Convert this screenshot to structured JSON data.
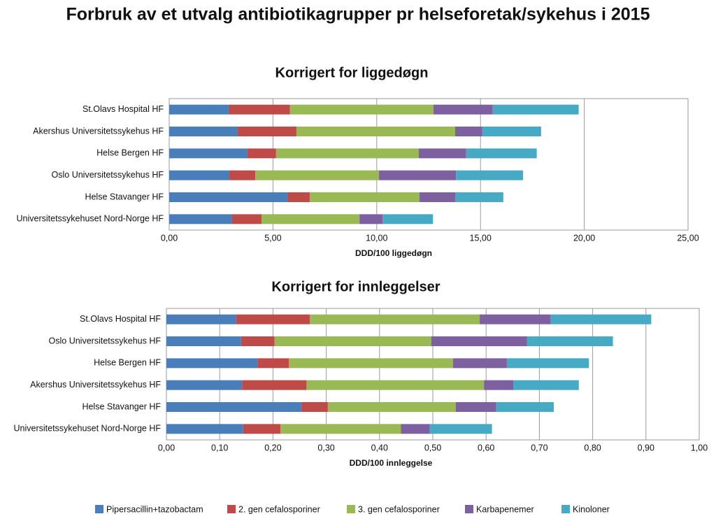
{
  "title": "Forbruk av et utvalg antibiotikagrupper pr helseforetak/sykehus i 2015",
  "chart_data": [
    {
      "type": "bar",
      "orientation": "horizontal",
      "stacked": true,
      "title": "Korrigert for liggedøgn",
      "xlabel": "DDD/100 liggedøgn",
      "categories": [
        "St.Olavs Hospital HF",
        "Akershus Universitetssykehus HF",
        "Helse Bergen HF",
        "Oslo Universitetssykehus HF",
        "Helse Stavanger HF",
        "Universitetssykehuset Nord-Norge HF"
      ],
      "series": [
        {
          "name": "Pipersacillin+tazobactam",
          "color": "#4a7ebb",
          "values": [
            2.86,
            3.3,
            3.77,
            2.9,
            5.69,
            3.03
          ]
        },
        {
          "name": "2. gen cefalosporiner",
          "color": "#be4b48",
          "values": [
            2.96,
            2.83,
            1.38,
            1.25,
            1.08,
            1.42
          ]
        },
        {
          "name": "3. gen cefalosporiner",
          "color": "#98b954",
          "values": [
            6.91,
            7.65,
            6.87,
            5.96,
            5.29,
            4.72
          ]
        },
        {
          "name": "Karbapenemer",
          "color": "#7d60a0",
          "values": [
            2.86,
            1.31,
            2.29,
            3.71,
            1.72,
            1.11
          ]
        },
        {
          "name": "Kinoloner",
          "color": "#46aac5",
          "values": [
            4.14,
            2.83,
            3.4,
            3.23,
            2.32,
            2.43
          ]
        }
      ],
      "xlim": [
        0,
        25
      ],
      "xticks": [
        {
          "value": 0,
          "label": "0,00"
        },
        {
          "value": 5,
          "label": "5,00"
        },
        {
          "value": 10,
          "label": "10,00"
        },
        {
          "value": 15,
          "label": "15,00"
        },
        {
          "value": 20,
          "label": "20,00"
        },
        {
          "value": 25,
          "label": "25,00"
        }
      ],
      "grid": true
    },
    {
      "type": "bar",
      "orientation": "horizontal",
      "stacked": true,
      "title": "Korrigert for innleggelser",
      "xlabel": "DDD/100 innleggelse",
      "categories": [
        "St.Olavs Hospital HF",
        "Oslo Universitetssykehus HF",
        "Helse Bergen HF",
        "Akershus Universitetssykehus HF",
        "Helse Stavanger HF",
        "Universitetssykehuset Nord-Norge HF"
      ],
      "series": [
        {
          "values": [
            0.131,
            0.14,
            0.171,
            0.142,
            0.253,
            0.144
          ]
        },
        {
          "values": [
            0.138,
            0.063,
            0.059,
            0.121,
            0.05,
            0.07
          ]
        },
        {
          "values": [
            0.319,
            0.294,
            0.308,
            0.333,
            0.24,
            0.226
          ]
        },
        {
          "values": [
            0.133,
            0.18,
            0.101,
            0.055,
            0.076,
            0.054
          ]
        },
        {
          "values": [
            0.189,
            0.161,
            0.154,
            0.123,
            0.108,
            0.117
          ]
        }
      ],
      "xlim": [
        0,
        1
      ],
      "xticks": [
        {
          "value": 0,
          "label": "0,00"
        },
        {
          "value": 0.1,
          "label": "0,10"
        },
        {
          "value": 0.2,
          "label": "0,20"
        },
        {
          "value": 0.3,
          "label": "0,30"
        },
        {
          "value": 0.4,
          "label": "0,40"
        },
        {
          "value": 0.5,
          "label": "0,50"
        },
        {
          "value": 0.6,
          "label": "0,60"
        },
        {
          "value": 0.7,
          "label": "0,70"
        },
        {
          "value": 0.8,
          "label": "0,80"
        },
        {
          "value": 0.9,
          "label": "0,90"
        },
        {
          "value": 1,
          "label": "1,00"
        }
      ],
      "grid": true
    }
  ]
}
